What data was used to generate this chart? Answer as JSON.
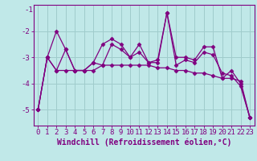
{
  "xlabel": "Windchill (Refroidissement éolien,°C)",
  "bg_color": "#c0e8e8",
  "line_color": "#800080",
  "grid_color": "#a0cccc",
  "x": [
    0,
    1,
    2,
    3,
    4,
    5,
    6,
    7,
    8,
    9,
    10,
    11,
    12,
    13,
    14,
    15,
    16,
    17,
    18,
    19,
    20,
    21,
    22,
    23
  ],
  "line1": [
    -5.0,
    -3.0,
    -2.0,
    -2.7,
    -3.5,
    -3.5,
    -3.2,
    -2.5,
    -2.3,
    -2.5,
    -3.0,
    -2.5,
    -3.2,
    -3.1,
    -1.3,
    -3.0,
    -3.0,
    -3.1,
    -2.6,
    -2.6,
    -3.8,
    -3.5,
    -4.0,
    -5.3
  ],
  "line2": [
    -5.0,
    -3.0,
    -3.5,
    -3.5,
    -3.5,
    -3.5,
    -3.5,
    -3.3,
    -3.3,
    -3.3,
    -3.3,
    -3.3,
    -3.3,
    -3.4,
    -3.4,
    -3.5,
    -3.5,
    -3.6,
    -3.6,
    -3.7,
    -3.8,
    -3.8,
    -3.9,
    -5.3
  ],
  "line3": [
    -5.0,
    -3.0,
    -3.5,
    -2.7,
    -3.5,
    -3.5,
    -3.2,
    -3.3,
    -2.5,
    -2.7,
    -3.0,
    -2.8,
    -3.2,
    -3.2,
    -1.3,
    -3.3,
    -3.1,
    -3.2,
    -2.8,
    -2.9,
    -3.6,
    -3.7,
    -4.1,
    -5.3
  ],
  "ylim": [
    -5.6,
    -1.0
  ],
  "yticks": [
    -5,
    -4,
    -3,
    -2
  ],
  "xlim": [
    -0.5,
    23.5
  ],
  "tick_fontsize": 6.5,
  "label_fontsize": 7
}
